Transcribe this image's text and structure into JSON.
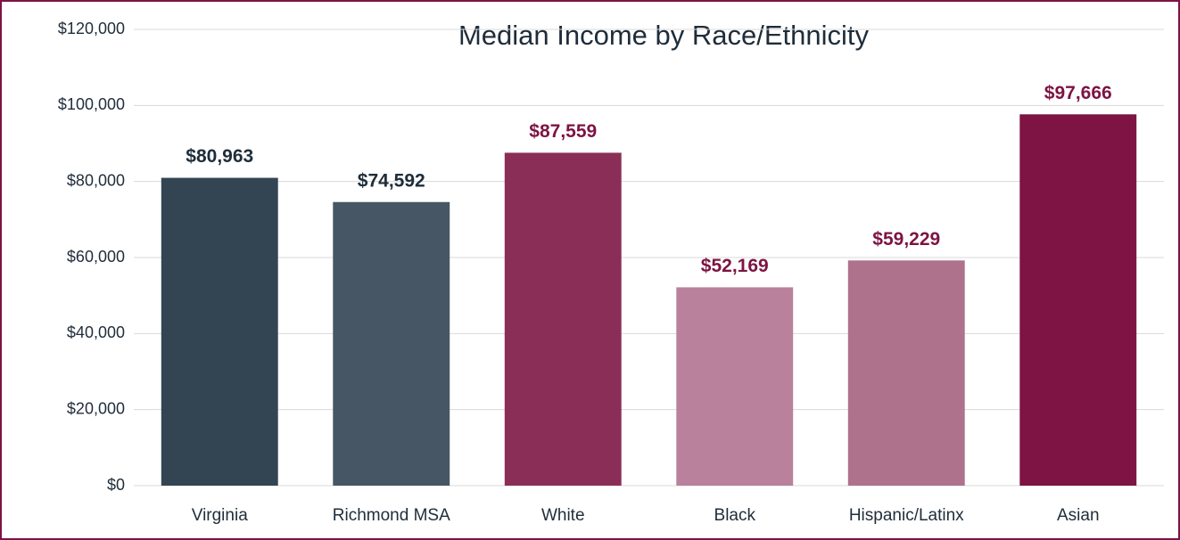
{
  "chart_data": {
    "type": "bar",
    "title": "Median Income by Race/Ethnicity",
    "categories": [
      "Virginia",
      "Richmond MSA",
      "White",
      "Black",
      "Hispanic/Latinx",
      "Asian"
    ],
    "values": [
      80963,
      74592,
      87559,
      52169,
      59229,
      97666
    ],
    "value_labels": [
      "$80,963",
      "$74,592",
      "$87,559",
      "$52,169",
      "$59,229",
      "$97,666"
    ],
    "colors": [
      "#334553",
      "#465664",
      "#8b2e57",
      "#b9819b",
      "#ae728d",
      "#7d1443"
    ],
    "label_colors": [
      "#1f2d3a",
      "#1f2d3a",
      "#7d1443",
      "#7d1443",
      "#7d1443",
      "#7d1443"
    ],
    "ylim": [
      0,
      120000
    ],
    "yticks": [
      {
        "value": 0,
        "label": "$0"
      },
      {
        "value": 20000,
        "label": "$20,000"
      },
      {
        "value": 40000,
        "label": "$40,000"
      },
      {
        "value": 60000,
        "label": "$60,000"
      },
      {
        "value": 80000,
        "label": "$80,000"
      },
      {
        "value": 100000,
        "label": "$100,000"
      },
      {
        "value": 120000,
        "label": "$120,000"
      }
    ],
    "grid": true
  }
}
